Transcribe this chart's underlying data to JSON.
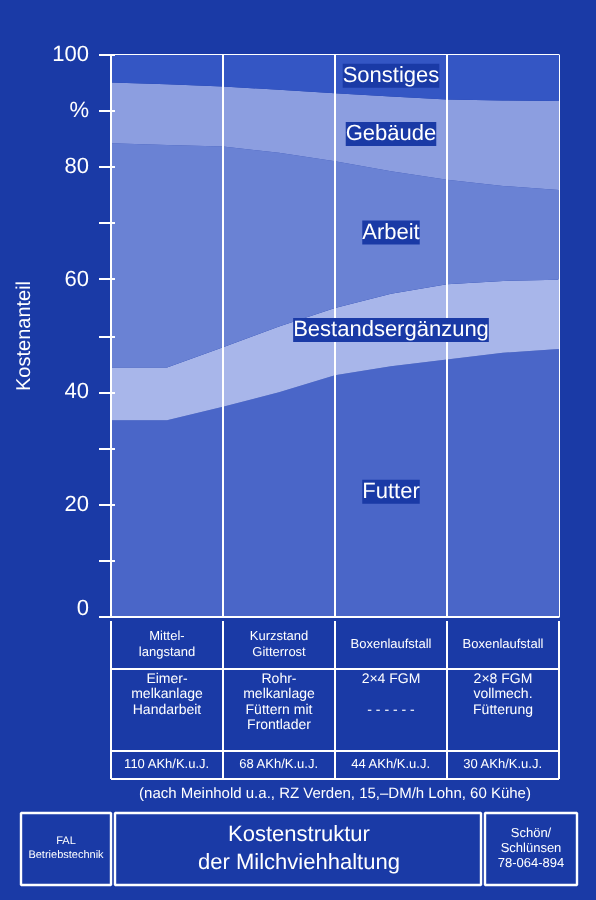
{
  "chart_data": {
    "type": "area",
    "stacked": true,
    "title": "Kostenstruktur\nder Milchviehhaltung",
    "ylabel": "Kostenanteil",
    "categories": [
      null,
      null,
      null,
      null,
      null,
      null,
      null,
      null,
      null
    ],
    "ylim": [
      0,
      100
    ],
    "yticks": [
      0,
      {
        "value": 10,
        "label": null
      },
      20,
      {
        "value": 30,
        "label": null
      },
      40,
      {
        "value": 50,
        "label": null
      },
      60,
      {
        "value": 70,
        "label": null
      },
      80,
      {
        "value": 90,
        "label": "%"
      },
      100
    ],
    "grid": "x",
    "legend": false,
    "series": [
      {
        "name": "Futter",
        "color": "#4a66c8",
        "values": [
          35,
          35,
          37.4,
          40,
          43,
          44.6,
          45.8,
          47,
          47.7
        ]
      },
      {
        "name": "Bestandsergänzung",
        "color": "#a8b6ea",
        "values": [
          9.4,
          9.4,
          10.6,
          11.7,
          12,
          12.9,
          13.4,
          12.8,
          12.3
        ]
      },
      {
        "name": "Arbeit",
        "color": "#6a82d4",
        "values": [
          39.9,
          39.6,
          35.7,
          30.9,
          26.1,
          21.8,
          18.6,
          16.9,
          16
        ]
      },
      {
        "name": "Gebäude",
        "color": "#8c9ee0",
        "values": [
          10.8,
          10.8,
          10.7,
          11.2,
          12.1,
          13.3,
          14.3,
          15.2,
          15.8
        ]
      },
      {
        "name": "Sonstiges",
        "color": "#3456c4",
        "values": [
          4.9,
          5.2,
          5.6,
          6.2,
          6.8,
          7.4,
          7.9,
          8.1,
          8.2
        ]
      }
    ],
    "annotations": [
      "Mittel-\nlangstand",
      "Kurzstand\nGitterrost",
      "Boxenlaufstall",
      "Boxenlaufstall",
      "Eimer-\nmelkanlage\nHandarbeit",
      "Rohr-\nmelkanlage\nFüttern mit\nFrontlader",
      "2×4 FGM\n\n- - - - - -",
      "2×8 FGM\nvollmech.\nFütterung",
      "110 AKh/K.u.J.",
      "68 AKh/K.u.J.",
      "44 AKh/K.u.J.",
      "30 AKh/K.u.J.",
      "(nach Meinhold u.a., RZ Verden, 15,–DM/h Lohn, 60 Kühe)",
      "FAL\nBetriebstechnik",
      "Schön/\nSchlünsen\n78-064-894"
    ]
  }
}
